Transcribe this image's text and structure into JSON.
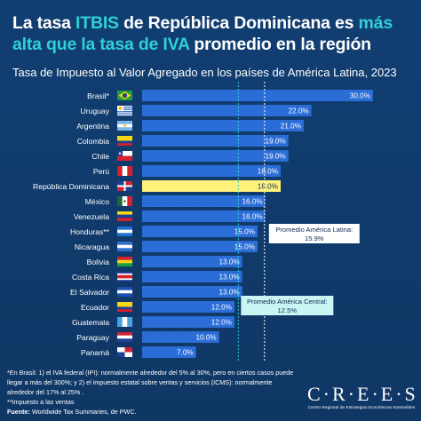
{
  "header": {
    "title_part1": "La tasa ",
    "title_hl1": "ITBIS",
    "title_part2": " de República Dominicana es ",
    "title_hl2": "más alta que la tasa de IVA",
    "title_part3": " promedio en la región"
  },
  "chart_data": {
    "type": "bar",
    "orientation": "horizontal",
    "title": "Tasa de Impuesto al Valor Agregado en los países de América Latina, 2023",
    "categories": [
      "Brasil*",
      "Uruguay",
      "Argentina",
      "Colombia",
      "Chile",
      "Perú",
      "República Dominicana",
      "México",
      "Venezuela",
      "Honduras**",
      "Nicaragua",
      "Bolivia",
      "Costa Rica",
      "El Salvador",
      "Ecuador",
      "Guatemala",
      "Paraguay",
      "Panamá"
    ],
    "values": [
      30.0,
      22.0,
      21.0,
      19.0,
      19.0,
      18.0,
      18.0,
      16.0,
      16.0,
      15.0,
      15.0,
      13.0,
      13.0,
      13.0,
      12.0,
      12.0,
      10.0,
      7.0
    ],
    "value_labels": [
      "30.0%",
      "22.0%",
      "21.0%",
      "19.0%",
      "19.0%",
      "18.0%",
      "18.0%",
      "16.0%",
      "16.0%",
      "15.0%",
      "15.0%",
      "13.0%",
      "13.0%",
      "13.0%",
      "12.0%",
      "12.0%",
      "10.0%",
      "7.0%"
    ],
    "highlight_category": "República Dominicana",
    "xlim": [
      0,
      30
    ],
    "flags": [
      "brazil-flag",
      "uruguay-flag",
      "argentina-flag",
      "colombia-flag",
      "chile-flag",
      "peru-flag",
      "dominican-republic-flag",
      "mexico-flag",
      "venezuela-flag",
      "honduras-flag",
      "nicaragua-flag",
      "bolivia-flag",
      "costa-rica-flag",
      "el-salvador-flag",
      "ecuador-flag",
      "guatemala-flag",
      "paraguay-flag",
      "panama-flag"
    ],
    "reference_lines": [
      {
        "label": "Promedio América Latina:",
        "value": 15.9,
        "value_label": "15.9%",
        "style": "white-dashed"
      },
      {
        "label": "Promedio América Central:",
        "value": 12.5,
        "value_label": "12.5%",
        "style": "teal-dashed"
      }
    ],
    "colors": {
      "bar": "#2a6dd6",
      "highlight": "#fff27a",
      "latam_line": "#ffffff",
      "central_line": "#2fd0d6",
      "central_box": "#c9f5f3"
    }
  },
  "footnotes": {
    "note1": "*En Brasil: 1) el IVA federal (IPI): normalmente alrededor del 5% al 30%, pero en ciertos casos puede llegar a más del 300%; y 2) el impuesto estatal sobre ventas y servicios (ICMS): normalmente alrededor del 17% al 25% .",
    "note2": "**Impuesto a las ventas",
    "source_label": "Fuente:",
    "source_text": " Worldwide Tax Summaries, de PWC."
  },
  "logo": {
    "mark": "CREES",
    "sub1": "Centro Regional de Estrategias Económicas Sostenibles"
  }
}
